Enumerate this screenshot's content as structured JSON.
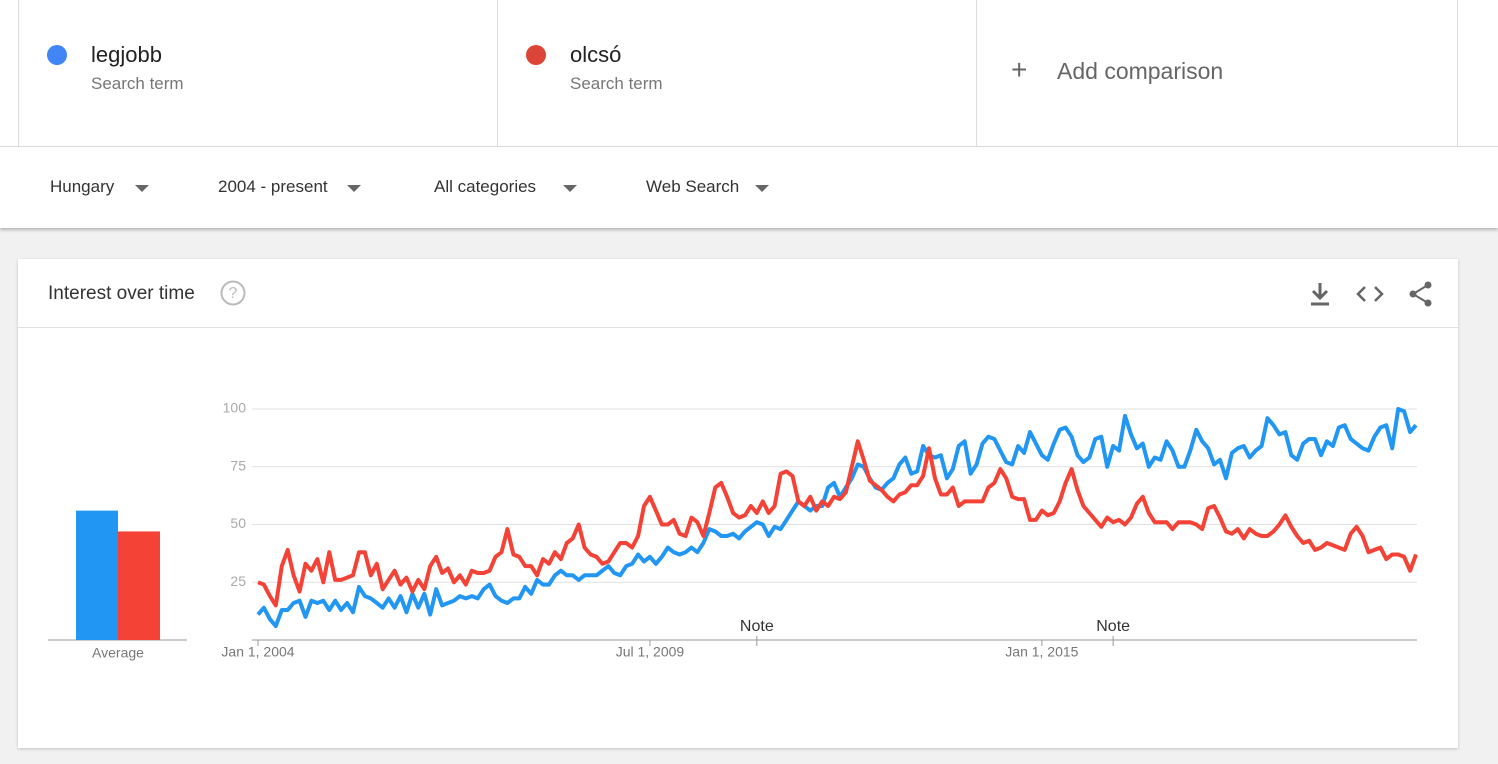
{
  "comparison": {
    "terms": [
      {
        "name": "legjobb",
        "subtitle": "Search term",
        "color": "#4285f4"
      },
      {
        "name": "olcsó",
        "subtitle": "Search term",
        "color": "#db4437"
      }
    ],
    "add": "Add comparison"
  },
  "filters": [
    "Hungary",
    "2004 - present",
    "All categories",
    "Web Search"
  ],
  "card": {
    "title": "Interest over time"
  },
  "chart_data": [
    {
      "type": "bar",
      "categories": [
        "Average"
      ],
      "ylim": [
        0,
        100
      ],
      "series": [
        {
          "color": "#2196f3",
          "values": [
            56
          ]
        },
        {
          "color": "#f44336",
          "values": [
            47
          ]
        }
      ]
    },
    {
      "type": "line",
      "ylim": [
        0,
        100
      ],
      "yticks": [
        25,
        50,
        75,
        100
      ],
      "grid": true,
      "categories": [
        "Jan 1, 2004",
        null,
        null,
        null,
        null,
        null,
        null,
        null,
        null,
        null,
        null,
        null,
        null,
        null,
        null,
        null,
        null,
        null,
        null,
        null,
        null,
        null,
        null,
        null,
        null,
        null,
        null,
        null,
        null,
        null,
        null,
        null,
        null,
        null,
        null,
        null,
        null,
        null,
        null,
        null,
        null,
        null,
        null,
        null,
        null,
        null,
        null,
        null,
        null,
        null,
        null,
        null,
        null,
        null,
        null,
        null,
        null,
        null,
        null,
        null,
        null,
        null,
        null,
        null,
        null,
        null,
        "Jul 1, 2009",
        null,
        null,
        null,
        null,
        null,
        null,
        null,
        null,
        null,
        null,
        null,
        null,
        null,
        null,
        null,
        null,
        null,
        null,
        null,
        null,
        null,
        null,
        null,
        null,
        null,
        null,
        null,
        null,
        null,
        null,
        null,
        null,
        null,
        null,
        null,
        null,
        null,
        null,
        null,
        null,
        null,
        null,
        null,
        null,
        null,
        null,
        null,
        null,
        null,
        null,
        null,
        null,
        null,
        null,
        null,
        null,
        null,
        null,
        null,
        null,
        null,
        null,
        null,
        null,
        null,
        "Jan 1, 2015",
        null,
        null,
        null,
        null,
        null,
        null,
        null,
        null,
        null,
        null,
        null,
        null,
        null,
        null,
        null,
        null,
        null,
        null,
        null,
        null,
        null,
        null,
        null,
        null,
        null,
        null,
        null,
        null,
        null,
        null,
        null,
        null,
        null,
        null,
        null,
        null,
        null,
        null,
        null,
        null,
        null,
        null,
        null,
        null,
        null,
        null,
        null,
        null,
        null,
        null,
        null,
        null,
        null,
        null,
        null,
        null,
        null,
        null,
        null,
        null,
        null,
        null,
        null
      ],
      "annotations": [
        {
          "text": "Note",
          "x": 84
        },
        {
          "text": "Note",
          "x": 144
        }
      ],
      "series": [
        {
          "color": "#2196f3",
          "values": [
            11,
            14,
            9,
            6,
            13,
            13,
            16,
            17,
            10,
            17,
            16,
            17,
            13,
            17,
            13,
            16,
            12,
            23,
            19,
            18,
            16,
            14,
            18,
            14,
            19,
            12,
            20,
            14,
            20,
            11,
            22,
            15,
            16,
            17,
            19,
            18,
            19,
            18,
            22,
            24,
            19,
            17,
            16,
            18,
            18,
            23,
            20,
            26,
            24,
            24,
            28,
            30,
            28,
            28,
            26,
            28,
            28,
            28,
            30,
            32,
            29,
            28,
            32,
            33,
            37,
            34,
            36,
            33,
            36,
            40,
            38,
            37,
            38,
            40,
            38,
            42,
            48,
            47,
            45,
            45,
            46,
            44,
            47,
            49,
            51,
            50,
            45,
            49,
            48,
            52,
            56,
            60,
            58,
            56,
            58,
            58,
            66,
            68,
            62,
            66,
            70,
            76,
            75,
            70,
            66,
            65,
            68,
            70,
            76,
            79,
            72,
            73,
            84,
            80,
            79,
            80,
            70,
            74,
            84,
            86,
            72,
            76,
            85,
            88,
            87,
            82,
            77,
            76,
            84,
            81,
            90,
            85,
            80,
            78,
            85,
            91,
            92,
            88,
            80,
            77,
            79,
            87,
            88,
            75,
            84,
            82,
            97,
            89,
            83,
            85,
            75,
            79,
            78,
            86,
            82,
            75,
            75,
            82,
            91,
            86,
            83,
            76,
            78,
            70,
            81,
            83,
            84,
            79,
            82,
            84,
            96,
            93,
            89,
            90,
            80,
            78,
            85,
            87,
            87,
            80,
            86,
            84,
            92,
            93,
            87,
            85,
            83,
            82,
            88,
            92,
            93,
            83,
            100,
            99,
            90,
            93
          ]
        },
        {
          "color": "#f44336",
          "values": [
            25,
            24,
            19,
            15,
            32,
            39,
            28,
            21,
            33,
            30,
            35,
            25,
            38,
            26,
            26,
            27,
            28,
            38,
            38,
            28,
            33,
            22,
            26,
            30,
            24,
            27,
            21,
            26,
            22,
            32,
            36,
            29,
            31,
            25,
            28,
            24,
            30,
            29,
            29,
            30,
            36,
            38,
            48,
            37,
            36,
            32,
            32,
            28,
            35,
            33,
            38,
            35,
            42,
            44,
            50,
            40,
            37,
            36,
            33,
            34,
            38,
            42,
            42,
            40,
            45,
            58,
            62,
            56,
            50,
            50,
            52,
            46,
            45,
            53,
            51,
            45,
            55,
            66,
            68,
            62,
            55,
            53,
            54,
            58,
            55,
            60,
            55,
            58,
            72,
            73,
            71,
            60,
            58,
            62,
            56,
            60,
            58,
            62,
            61,
            64,
            75,
            86,
            78,
            69,
            67,
            65,
            62,
            60,
            63,
            64,
            67,
            67,
            71,
            83,
            70,
            63,
            63,
            66,
            58,
            60,
            60,
            60,
            60,
            66,
            68,
            74,
            70,
            62,
            61,
            61,
            52,
            52,
            56,
            54,
            55,
            60,
            68,
            74,
            65,
            58,
            55,
            52,
            49,
            53,
            51,
            52,
            50,
            53,
            59,
            62,
            55,
            51,
            51,
            51,
            48,
            51,
            51,
            51,
            50,
            48,
            57,
            58,
            53,
            47,
            46,
            48,
            44,
            48,
            46,
            45,
            45,
            47,
            50,
            54,
            49,
            45,
            42,
            43,
            39,
            40,
            42,
            41,
            40,
            39,
            46,
            49,
            45,
            38,
            39,
            40,
            35,
            37,
            37,
            36,
            30,
            37
          ]
        }
      ]
    }
  ]
}
